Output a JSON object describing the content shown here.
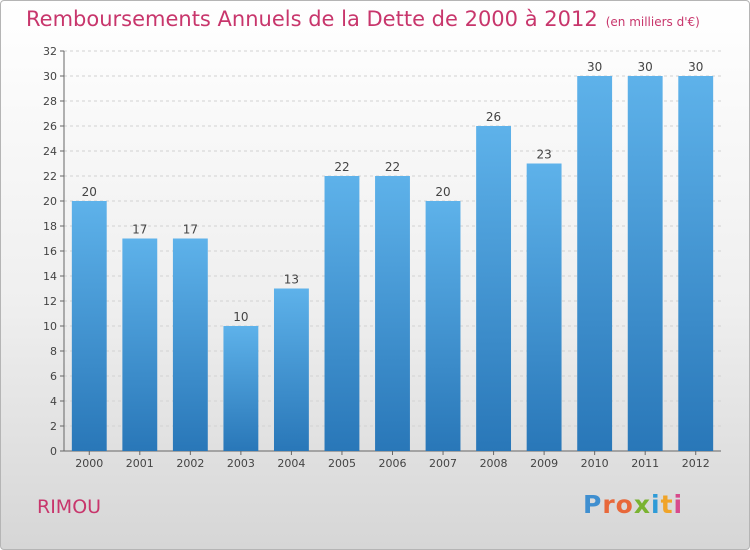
{
  "header": {
    "title": "Remboursements Annuels de la Dette de 2000 à 2012",
    "unit": "(en milliers d'€)"
  },
  "footer": {
    "location": "RIMOU",
    "logo_text": "Proxiti"
  },
  "colors": {
    "title": "#c8366c",
    "bar_top": "#5eb2ea",
    "bar_bottom": "#2977b8",
    "logo_letters": [
      "#3f8fd0",
      "#e8683a",
      "#e8683a",
      "#7ab331",
      "#2f9bd7",
      "#f0a428",
      "#d84a8c"
    ]
  },
  "chart_data": {
    "type": "bar",
    "title": "Remboursements Annuels de la Dette de 2000 à 2012",
    "unit": "(en milliers d'€)",
    "categories": [
      "2000",
      "2001",
      "2002",
      "2003",
      "2004",
      "2005",
      "2006",
      "2007",
      "2008",
      "2009",
      "2010",
      "2011",
      "2012"
    ],
    "values": [
      20,
      17,
      17,
      10,
      13,
      22,
      22,
      20,
      26,
      23,
      30,
      30,
      30
    ],
    "ylim": [
      0,
      32
    ],
    "yticks": [
      0,
      2,
      4,
      6,
      8,
      10,
      12,
      14,
      16,
      18,
      20,
      22,
      24,
      26,
      28,
      30,
      32
    ],
    "grid": true,
    "data_labels": true
  }
}
